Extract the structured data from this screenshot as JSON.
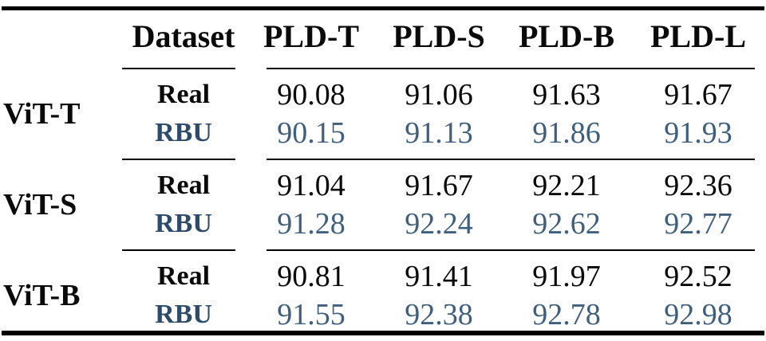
{
  "table": {
    "columns": [
      "Dataset",
      "PLD-T",
      "PLD-S",
      "PLD-B",
      "PLD-L"
    ],
    "groups": [
      {
        "model": "ViT-T",
        "rows": [
          {
            "dataset": "Real",
            "values": [
              "90.08",
              "91.06",
              "91.63",
              "91.67"
            ]
          },
          {
            "dataset": "RBU",
            "values": [
              "90.15",
              "91.13",
              "91.86",
              "91.93"
            ]
          }
        ]
      },
      {
        "model": "ViT-S",
        "rows": [
          {
            "dataset": "Real",
            "values": [
              "91.04",
              "91.67",
              "92.21",
              "92.36"
            ]
          },
          {
            "dataset": "RBU",
            "values": [
              "91.28",
              "92.24",
              "92.62",
              "92.77"
            ]
          }
        ]
      },
      {
        "model": "ViT-B",
        "rows": [
          {
            "dataset": "Real",
            "values": [
              "90.81",
              "91.41",
              "91.97",
              "92.52"
            ]
          },
          {
            "dataset": "RBU",
            "values": [
              "91.55",
              "92.38",
              "92.78",
              "92.98"
            ]
          }
        ]
      }
    ]
  },
  "colors": {
    "real_text": "#0a0a0a",
    "rbu_label": "#2e4c69",
    "rbu_value": "#3f5f7d",
    "rule": "#000000",
    "bg": "#ffffff"
  }
}
